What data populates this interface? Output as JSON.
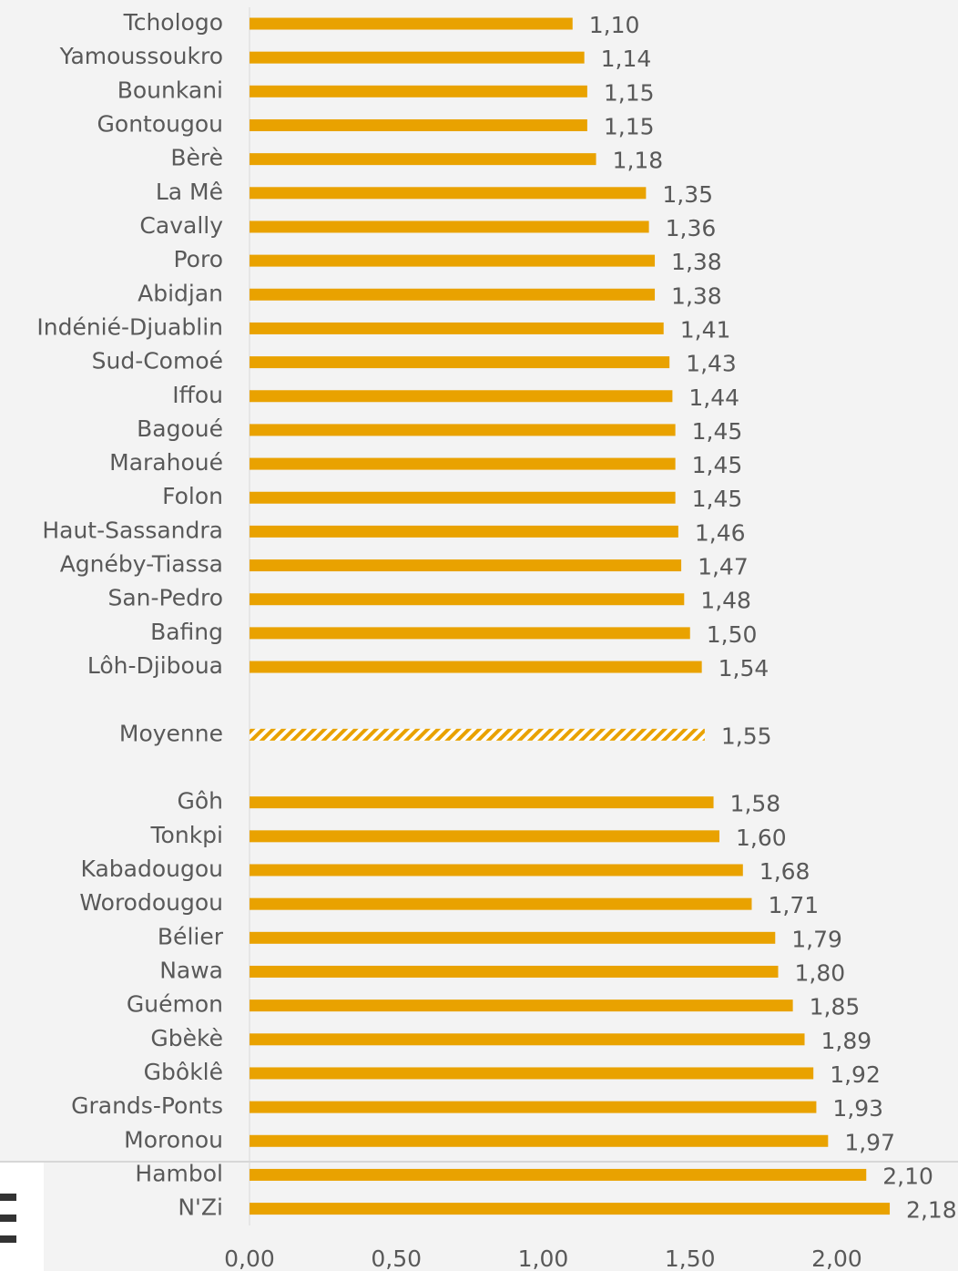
{
  "chart_data": {
    "type": "bar",
    "orientation": "horizontal",
    "categories": [
      "Tchologo",
      "Yamoussoukro",
      "Bounkani",
      "Gontougou",
      "Bèrè",
      "La Mê",
      "Cavally",
      "Poro",
      "Abidjan",
      "Indénié-Djuablin",
      "Sud-Comoé",
      "Iffou",
      "Bagoué",
      "Marahoué",
      "Folon",
      "Haut-Sassandra",
      "Agnéby-Tiassa",
      "San-Pedro",
      "Bafing",
      "Lôh-Djiboua",
      null,
      "Moyenne",
      null,
      "Gôh",
      "Tonkpi",
      "Kabadougou",
      "Worodougou",
      "Bélier",
      "Nawa",
      "Guémon",
      "Gbèkè",
      "Gbôklê",
      "Grands-Ponts",
      "Moronou",
      "Hambol",
      "N'Zi"
    ],
    "values": [
      1.1,
      1.14,
      1.15,
      1.15,
      1.18,
      1.35,
      1.36,
      1.38,
      1.38,
      1.41,
      1.43,
      1.44,
      1.45,
      1.45,
      1.45,
      1.46,
      1.47,
      1.48,
      1.5,
      1.54,
      null,
      1.55,
      null,
      1.58,
      1.6,
      1.68,
      1.71,
      1.79,
      1.8,
      1.85,
      1.89,
      1.92,
      1.93,
      1.97,
      2.1,
      2.18
    ],
    "value_labels": [
      "1,10",
      "1,14",
      "1,15",
      "1,15",
      "1,18",
      "1,35",
      "1,36",
      "1,38",
      "1,38",
      "1,41",
      "1,43",
      "1,44",
      "1,45",
      "1,45",
      "1,45",
      "1,46",
      "1,47",
      "1,48",
      "1,50",
      "1,54",
      null,
      "1,55",
      null,
      "1,58",
      "1,60",
      "1,68",
      "1,71",
      "1,79",
      "1,80",
      "1,85",
      "1,89",
      "1,92",
      "1,93",
      "1,97",
      "2,10",
      "2,18"
    ],
    "color": "#e9a200",
    "hatch_index": 21,
    "xlim": [
      0,
      2.4
    ],
    "xticks": [
      {
        "value": 0,
        "label": "0,00"
      },
      {
        "value": 0.5,
        "label": "0,50"
      },
      {
        "value": 1,
        "label": "1,00"
      },
      {
        "value": 1.5,
        "label": "1,50"
      },
      {
        "value": 2,
        "label": "2,00"
      }
    ]
  }
}
